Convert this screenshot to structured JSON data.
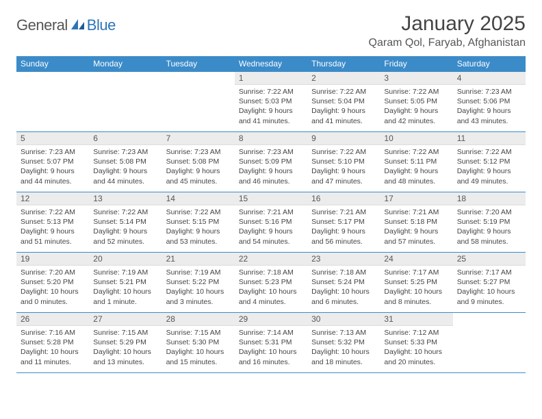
{
  "logo": {
    "word1": "General",
    "word2": "Blue"
  },
  "title": "January 2025",
  "location": "Qaram Qol, Faryab, Afghanistan",
  "header_bg": "#3b8bc9",
  "header_text": "#ffffff",
  "daynum_bg": "#ececec",
  "border_color": "#3b8bc9",
  "weekdays": [
    "Sunday",
    "Monday",
    "Tuesday",
    "Wednesday",
    "Thursday",
    "Friday",
    "Saturday"
  ],
  "weeks": [
    [
      {
        "n": "",
        "sr": "",
        "ss": "",
        "dl": ""
      },
      {
        "n": "",
        "sr": "",
        "ss": "",
        "dl": ""
      },
      {
        "n": "",
        "sr": "",
        "ss": "",
        "dl": ""
      },
      {
        "n": "1",
        "sr": "Sunrise: 7:22 AM",
        "ss": "Sunset: 5:03 PM",
        "dl": "Daylight: 9 hours and 41 minutes."
      },
      {
        "n": "2",
        "sr": "Sunrise: 7:22 AM",
        "ss": "Sunset: 5:04 PM",
        "dl": "Daylight: 9 hours and 41 minutes."
      },
      {
        "n": "3",
        "sr": "Sunrise: 7:22 AM",
        "ss": "Sunset: 5:05 PM",
        "dl": "Daylight: 9 hours and 42 minutes."
      },
      {
        "n": "4",
        "sr": "Sunrise: 7:23 AM",
        "ss": "Sunset: 5:06 PM",
        "dl": "Daylight: 9 hours and 43 minutes."
      }
    ],
    [
      {
        "n": "5",
        "sr": "Sunrise: 7:23 AM",
        "ss": "Sunset: 5:07 PM",
        "dl": "Daylight: 9 hours and 44 minutes."
      },
      {
        "n": "6",
        "sr": "Sunrise: 7:23 AM",
        "ss": "Sunset: 5:08 PM",
        "dl": "Daylight: 9 hours and 44 minutes."
      },
      {
        "n": "7",
        "sr": "Sunrise: 7:23 AM",
        "ss": "Sunset: 5:08 PM",
        "dl": "Daylight: 9 hours and 45 minutes."
      },
      {
        "n": "8",
        "sr": "Sunrise: 7:23 AM",
        "ss": "Sunset: 5:09 PM",
        "dl": "Daylight: 9 hours and 46 minutes."
      },
      {
        "n": "9",
        "sr": "Sunrise: 7:22 AM",
        "ss": "Sunset: 5:10 PM",
        "dl": "Daylight: 9 hours and 47 minutes."
      },
      {
        "n": "10",
        "sr": "Sunrise: 7:22 AM",
        "ss": "Sunset: 5:11 PM",
        "dl": "Daylight: 9 hours and 48 minutes."
      },
      {
        "n": "11",
        "sr": "Sunrise: 7:22 AM",
        "ss": "Sunset: 5:12 PM",
        "dl": "Daylight: 9 hours and 49 minutes."
      }
    ],
    [
      {
        "n": "12",
        "sr": "Sunrise: 7:22 AM",
        "ss": "Sunset: 5:13 PM",
        "dl": "Daylight: 9 hours and 51 minutes."
      },
      {
        "n": "13",
        "sr": "Sunrise: 7:22 AM",
        "ss": "Sunset: 5:14 PM",
        "dl": "Daylight: 9 hours and 52 minutes."
      },
      {
        "n": "14",
        "sr": "Sunrise: 7:22 AM",
        "ss": "Sunset: 5:15 PM",
        "dl": "Daylight: 9 hours and 53 minutes."
      },
      {
        "n": "15",
        "sr": "Sunrise: 7:21 AM",
        "ss": "Sunset: 5:16 PM",
        "dl": "Daylight: 9 hours and 54 minutes."
      },
      {
        "n": "16",
        "sr": "Sunrise: 7:21 AM",
        "ss": "Sunset: 5:17 PM",
        "dl": "Daylight: 9 hours and 56 minutes."
      },
      {
        "n": "17",
        "sr": "Sunrise: 7:21 AM",
        "ss": "Sunset: 5:18 PM",
        "dl": "Daylight: 9 hours and 57 minutes."
      },
      {
        "n": "18",
        "sr": "Sunrise: 7:20 AM",
        "ss": "Sunset: 5:19 PM",
        "dl": "Daylight: 9 hours and 58 minutes."
      }
    ],
    [
      {
        "n": "19",
        "sr": "Sunrise: 7:20 AM",
        "ss": "Sunset: 5:20 PM",
        "dl": "Daylight: 10 hours and 0 minutes."
      },
      {
        "n": "20",
        "sr": "Sunrise: 7:19 AM",
        "ss": "Sunset: 5:21 PM",
        "dl": "Daylight: 10 hours and 1 minute."
      },
      {
        "n": "21",
        "sr": "Sunrise: 7:19 AM",
        "ss": "Sunset: 5:22 PM",
        "dl": "Daylight: 10 hours and 3 minutes."
      },
      {
        "n": "22",
        "sr": "Sunrise: 7:18 AM",
        "ss": "Sunset: 5:23 PM",
        "dl": "Daylight: 10 hours and 4 minutes."
      },
      {
        "n": "23",
        "sr": "Sunrise: 7:18 AM",
        "ss": "Sunset: 5:24 PM",
        "dl": "Daylight: 10 hours and 6 minutes."
      },
      {
        "n": "24",
        "sr": "Sunrise: 7:17 AM",
        "ss": "Sunset: 5:25 PM",
        "dl": "Daylight: 10 hours and 8 minutes."
      },
      {
        "n": "25",
        "sr": "Sunrise: 7:17 AM",
        "ss": "Sunset: 5:27 PM",
        "dl": "Daylight: 10 hours and 9 minutes."
      }
    ],
    [
      {
        "n": "26",
        "sr": "Sunrise: 7:16 AM",
        "ss": "Sunset: 5:28 PM",
        "dl": "Daylight: 10 hours and 11 minutes."
      },
      {
        "n": "27",
        "sr": "Sunrise: 7:15 AM",
        "ss": "Sunset: 5:29 PM",
        "dl": "Daylight: 10 hours and 13 minutes."
      },
      {
        "n": "28",
        "sr": "Sunrise: 7:15 AM",
        "ss": "Sunset: 5:30 PM",
        "dl": "Daylight: 10 hours and 15 minutes."
      },
      {
        "n": "29",
        "sr": "Sunrise: 7:14 AM",
        "ss": "Sunset: 5:31 PM",
        "dl": "Daylight: 10 hours and 16 minutes."
      },
      {
        "n": "30",
        "sr": "Sunrise: 7:13 AM",
        "ss": "Sunset: 5:32 PM",
        "dl": "Daylight: 10 hours and 18 minutes."
      },
      {
        "n": "31",
        "sr": "Sunrise: 7:12 AM",
        "ss": "Sunset: 5:33 PM",
        "dl": "Daylight: 10 hours and 20 minutes."
      },
      {
        "n": "",
        "sr": "",
        "ss": "",
        "dl": ""
      }
    ]
  ]
}
